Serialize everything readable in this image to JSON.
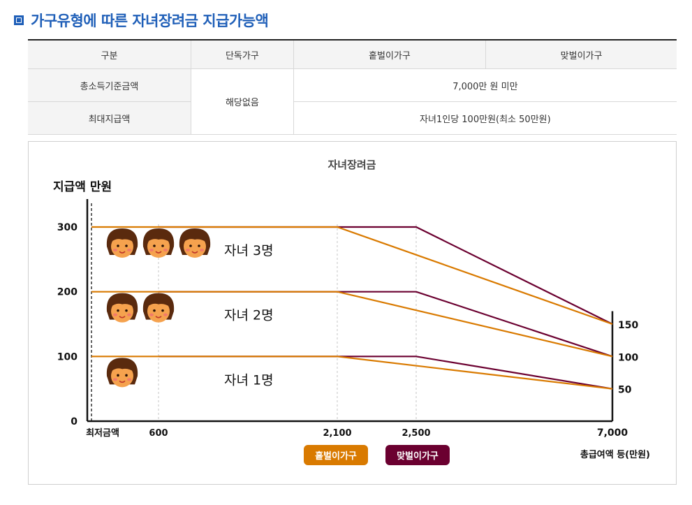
{
  "section_title": "가구유형에 따른 자녀장려금 지급가능액",
  "table": {
    "headers": [
      "구분",
      "단독가구",
      "홑벌이가구",
      "맞벌이가구"
    ],
    "rows": [
      {
        "label": "총소득기준금액",
        "single": "해당없음",
        "value": "7,000만 원 미만"
      },
      {
        "label": "최대지급액",
        "value": "자녀1인당 100만원(최소 50만원)"
      }
    ]
  },
  "chart_data": {
    "type": "line",
    "title": "자녀장려금",
    "ylabel": "지급액 만원",
    "xlabel": "총급여액 등(만원)",
    "x_tick_labels": [
      "최저금액",
      "600",
      "2,100",
      "2,500",
      "7,000"
    ],
    "y_tick_labels": [
      "0",
      "100",
      "200",
      "300"
    ],
    "right_tick_labels": [
      "150",
      "100",
      "50"
    ],
    "ylim": [
      0,
      300
    ],
    "series": [
      {
        "name": "홑벌이가구",
        "color": "#d97a00",
        "lines": [
          {
            "group": "자녀 3명",
            "x": [
              0,
              2100,
              7000
            ],
            "y": [
              300,
              300,
              150
            ]
          },
          {
            "group": "자녀 2명",
            "x": [
              0,
              2100,
              7000
            ],
            "y": [
              200,
              200,
              100
            ]
          },
          {
            "group": "자녀 1명",
            "x": [
              0,
              2100,
              7000
            ],
            "y": [
              100,
              100,
              50
            ]
          }
        ]
      },
      {
        "name": "맞벌이가구",
        "color": "#6b0030",
        "lines": [
          {
            "group": "자녀 3명",
            "x": [
              600,
              2500,
              7000
            ],
            "y": [
              300,
              300,
              150
            ]
          },
          {
            "group": "자녀 2명",
            "x": [
              600,
              2500,
              7000
            ],
            "y": [
              200,
              200,
              100
            ]
          },
          {
            "group": "자녀 1명",
            "x": [
              600,
              2500,
              7000
            ],
            "y": [
              100,
              100,
              50
            ]
          }
        ]
      }
    ],
    "annotations": [
      {
        "text": "자녀 3명",
        "children": 3
      },
      {
        "text": "자녀 2명",
        "children": 2
      },
      {
        "text": "자녀 1명",
        "children": 1
      }
    ],
    "legend": [
      "홑벌이가구",
      "맞벌이가구"
    ],
    "legend_placement": "bottom"
  }
}
